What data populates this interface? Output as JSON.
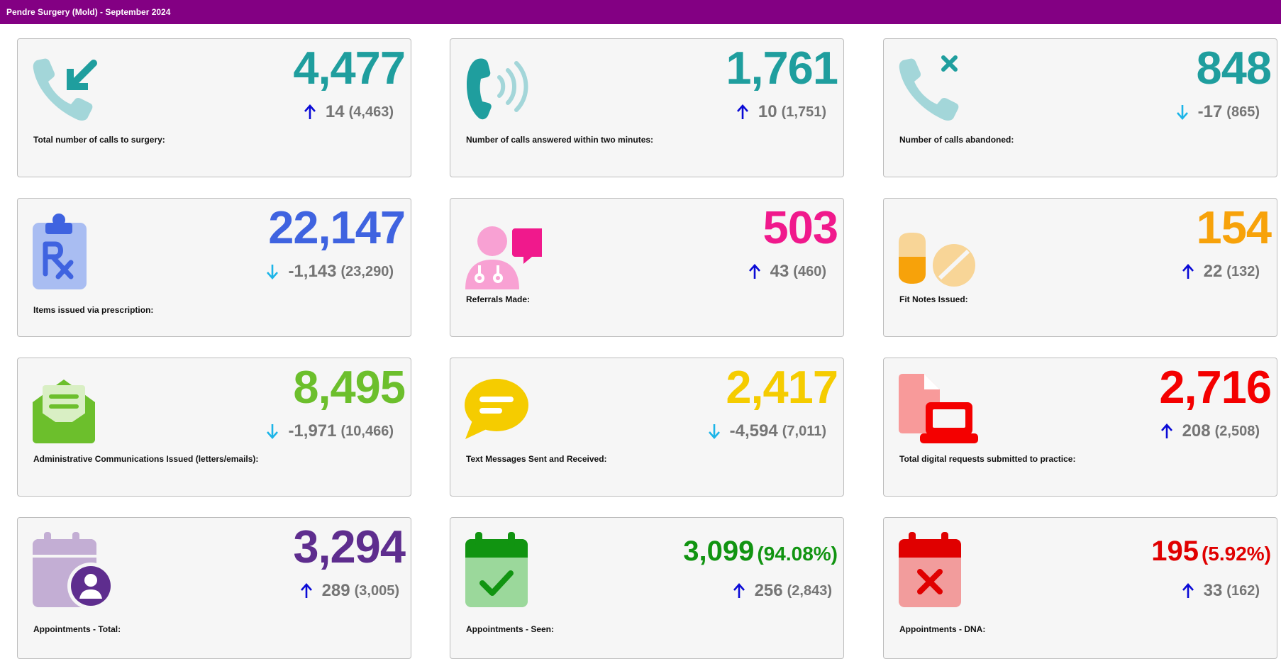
{
  "header": {
    "title": "Pendre Surgery (Mold) - September 2024"
  },
  "colors": {
    "header_bg": "#830083",
    "arrow_up": "#0a0ad6",
    "arrow_down": "#1cb5e8",
    "delta_text": "#757575"
  },
  "cards": [
    {
      "label": "Total number of calls to surgery:",
      "value": "4,477",
      "change": "14",
      "previous": "(4,463)",
      "direction": "up",
      "value_color": "#1f9e9e",
      "icon": "incoming-call-icon"
    },
    {
      "label": "Number of calls answered within two minutes:",
      "value": "1,761",
      "change": "10",
      "previous": "(1,751)",
      "direction": "up",
      "value_color": "#1f9e9e",
      "icon": "phone-ringing-icon"
    },
    {
      "label": "Number of calls abandoned:",
      "value": "848",
      "change": "-17",
      "previous": "(865)",
      "direction": "down",
      "value_color": "#1f9e9e",
      "icon": "missed-call-icon"
    },
    {
      "label": "Items issued via prescription:",
      "value": "22,147",
      "change": "-1,143",
      "previous": "(23,290)",
      "direction": "down",
      "value_color": "#3f63e0",
      "icon": "prescription-clipboard-icon"
    },
    {
      "label": "Referrals Made:",
      "value": "503",
      "change": "43",
      "previous": "(460)",
      "direction": "up",
      "value_color": "#f0198c",
      "icon": "doctor-chat-icon"
    },
    {
      "label": "Fit Notes Issued:",
      "value": "154",
      "change": "22",
      "previous": "(132)",
      "direction": "up",
      "value_color": "#f7a20a",
      "icon": "pills-icon"
    },
    {
      "label": "Administrative Communications Issued (letters/emails):",
      "value": "8,495",
      "change": "-1,971",
      "previous": "(10,466)",
      "direction": "down",
      "value_color": "#6cbf2c",
      "icon": "open-envelope-icon"
    },
    {
      "label": "Text Messages Sent and Received:",
      "value": "2,417",
      "change": "-4,594",
      "previous": "(7,011)",
      "direction": "down",
      "value_color": "#f5cc00",
      "icon": "speech-bubble-icon"
    },
    {
      "label": "Total digital requests submitted to practice:",
      "value": "2,716",
      "change": "208",
      "previous": "(2,508)",
      "direction": "up",
      "value_color": "#f40000",
      "icon": "laptop-document-icon"
    },
    {
      "label": "Appointments - Total:",
      "value": "3,294",
      "change": "289",
      "previous": "(3,005)",
      "direction": "up",
      "value_color": "#5e2d8e",
      "icon": "calendar-user-icon"
    },
    {
      "label": "Appointments - Seen:",
      "value": "3,099",
      "value_pct": "(94.08%)",
      "change": "256",
      "previous": "(2,843)",
      "direction": "up",
      "value_color": "#119411",
      "icon": "calendar-check-icon"
    },
    {
      "label": "Appointments - DNA:",
      "value": "195",
      "value_pct": "(5.92%)",
      "change": "33",
      "previous": "(162)",
      "direction": "up",
      "value_color": "#e00000",
      "icon": "calendar-cross-icon"
    }
  ]
}
